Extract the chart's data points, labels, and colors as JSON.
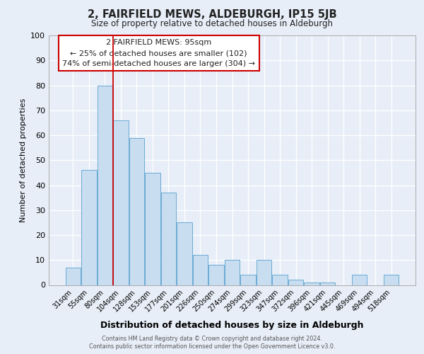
{
  "title": "2, FAIRFIELD MEWS, ALDEBURGH, IP15 5JB",
  "subtitle": "Size of property relative to detached houses in Aldeburgh",
  "xlabel": "Distribution of detached houses by size in Aldeburgh",
  "ylabel": "Number of detached properties",
  "bar_labels": [
    "31sqm",
    "55sqm",
    "80sqm",
    "104sqm",
    "128sqm",
    "153sqm",
    "177sqm",
    "201sqm",
    "226sqm",
    "250sqm",
    "274sqm",
    "299sqm",
    "323sqm",
    "347sqm",
    "372sqm",
    "396sqm",
    "421sqm",
    "445sqm",
    "469sqm",
    "494sqm",
    "518sqm"
  ],
  "bar_values": [
    7,
    46,
    80,
    66,
    59,
    45,
    37,
    25,
    12,
    8,
    10,
    4,
    10,
    4,
    2,
    1,
    1,
    0,
    4,
    0,
    4
  ],
  "bar_color": "#c8ddf0",
  "bar_edge_color": "#6aabd4",
  "bg_color": "#e8eef8",
  "grid_color": "#ffffff",
  "vline_color": "#cc0000",
  "annotation_line1": "2 FAIRFIELD MEWS: 95sqm",
  "annotation_line2": "← 25% of detached houses are smaller (102)",
  "annotation_line3": "74% of semi-detached houses are larger (304) →",
  "annotation_box_edgecolor": "#cc0000",
  "footer_line1": "Contains HM Land Registry data © Crown copyright and database right 2024.",
  "footer_line2": "Contains public sector information licensed under the Open Government Licence v3.0.",
  "ylim": [
    0,
    100
  ],
  "yticks": [
    0,
    10,
    20,
    30,
    40,
    50,
    60,
    70,
    80,
    90,
    100
  ],
  "vline_pos": 2.5
}
